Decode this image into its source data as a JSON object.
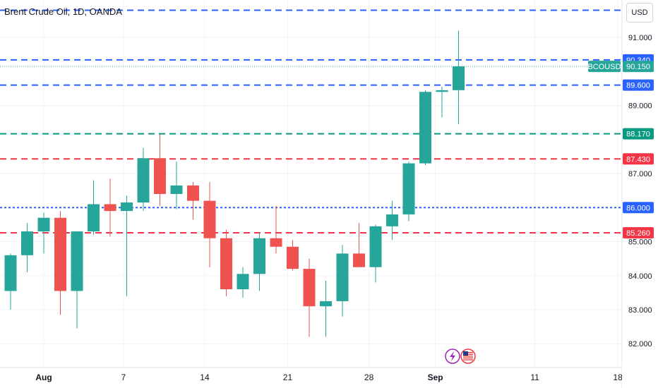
{
  "header": {
    "title": "Brent Crude Oil, 1D, OANDA",
    "currency_button": "USD"
  },
  "colors": {
    "up": "#26a69a",
    "down": "#ef5350",
    "line_blue": "#2962ff",
    "line_green": "#089981",
    "line_red": "#f23645",
    "axis_text": "#131722",
    "grid": "#f0f3fa",
    "current_price_line": "#26a69a"
  },
  "icons": [
    "lightning-icon",
    "us-flag-icon"
  ],
  "chart_data": {
    "type": "candlestick",
    "symbol": "BCOUSD",
    "title": "Brent Crude Oil, 1D, OANDA",
    "ylim": [
      81.3,
      92.1
    ],
    "y_ticks": [
      {
        "label": "82.000",
        "value": 82.0
      },
      {
        "label": "83.000",
        "value": 83.0
      },
      {
        "label": "84.000",
        "value": 84.0
      },
      {
        "label": "85.000",
        "value": 85.0
      },
      {
        "label": "87.000",
        "value": 87.0
      },
      {
        "label": "89.000",
        "value": 89.0
      },
      {
        "label": "91.000",
        "value": 91.0
      }
    ],
    "x_ticks": [
      {
        "label": "Aug",
        "bar": 2,
        "bold": true
      },
      {
        "label": "7",
        "bar": 6.8,
        "bold": false
      },
      {
        "label": "14",
        "bar": 11.7,
        "bold": false
      },
      {
        "label": "21",
        "bar": 16.7,
        "bold": false
      },
      {
        "label": "28",
        "bar": 21.6,
        "bold": false
      },
      {
        "label": "Sep",
        "bar": 25.6,
        "bold": true
      },
      {
        "label": "11",
        "bar": 31.6,
        "bold": false
      },
      {
        "label": "18",
        "bar": 36.6,
        "bold": false
      }
    ],
    "candles": [
      {
        "o": 83.55,
        "h": 84.65,
        "l": 83.0,
        "c": 84.6
      },
      {
        "o": 84.6,
        "h": 85.55,
        "l": 84.1,
        "c": 85.3
      },
      {
        "o": 85.3,
        "h": 85.85,
        "l": 84.65,
        "c": 85.7
      },
      {
        "o": 85.7,
        "h": 85.9,
        "l": 82.85,
        "c": 83.55
      },
      {
        "o": 83.55,
        "h": 85.25,
        "l": 82.45,
        "c": 85.3
      },
      {
        "o": 85.3,
        "h": 86.8,
        "l": 85.2,
        "c": 86.1
      },
      {
        "o": 86.1,
        "h": 86.85,
        "l": 85.15,
        "c": 85.9
      },
      {
        "o": 85.9,
        "h": 86.35,
        "l": 83.4,
        "c": 86.15
      },
      {
        "o": 86.15,
        "h": 87.75,
        "l": 85.9,
        "c": 87.45
      },
      {
        "o": 87.45,
        "h": 88.15,
        "l": 86.05,
        "c": 86.4
      },
      {
        "o": 86.4,
        "h": 87.35,
        "l": 85.95,
        "c": 86.65
      },
      {
        "o": 86.65,
        "h": 86.75,
        "l": 85.65,
        "c": 86.2
      },
      {
        "o": 86.2,
        "h": 86.75,
        "l": 84.25,
        "c": 85.1
      },
      {
        "o": 85.1,
        "h": 85.35,
        "l": 83.4,
        "c": 83.6
      },
      {
        "o": 83.6,
        "h": 84.25,
        "l": 83.35,
        "c": 84.05
      },
      {
        "o": 84.05,
        "h": 85.25,
        "l": 83.55,
        "c": 85.1
      },
      {
        "o": 85.1,
        "h": 86.05,
        "l": 84.65,
        "c": 84.85
      },
      {
        "o": 84.85,
        "h": 85.05,
        "l": 84.15,
        "c": 84.2
      },
      {
        "o": 84.2,
        "h": 84.5,
        "l": 82.2,
        "c": 83.1
      },
      {
        "o": 83.1,
        "h": 83.85,
        "l": 82.2,
        "c": 83.25
      },
      {
        "o": 83.25,
        "h": 84.9,
        "l": 82.8,
        "c": 84.65
      },
      {
        "o": 84.65,
        "h": 85.55,
        "l": 84.25,
        "c": 84.25
      },
      {
        "o": 84.25,
        "h": 85.5,
        "l": 83.8,
        "c": 85.45
      },
      {
        "o": 85.45,
        "h": 86.2,
        "l": 85.05,
        "c": 85.8
      },
      {
        "o": 85.8,
        "h": 87.35,
        "l": 85.6,
        "c": 87.3
      },
      {
        "o": 87.3,
        "h": 89.45,
        "l": 87.25,
        "c": 89.4
      },
      {
        "o": 89.4,
        "h": 89.55,
        "l": 88.65,
        "c": 89.45
      },
      {
        "o": 89.45,
        "h": 91.2,
        "l": 88.45,
        "c": 90.15
      }
    ],
    "horizontal_lines": [
      {
        "value": 91.8,
        "color": "#2962ff",
        "style": "dashed",
        "label": ""
      },
      {
        "value": 90.34,
        "color": "#2962ff",
        "style": "dashed",
        "label": "90.340"
      },
      {
        "value": 89.6,
        "color": "#2962ff",
        "style": "dashed",
        "label": "89.600"
      },
      {
        "value": 88.17,
        "color": "#089981",
        "style": "dashed",
        "label": "88.170"
      },
      {
        "value": 87.43,
        "color": "#f23645",
        "style": "dashed",
        "label": "87.430"
      },
      {
        "value": 86.0,
        "color": "#2962ff",
        "style": "dotted",
        "label": "86.000"
      },
      {
        "value": 85.26,
        "color": "#f23645",
        "style": "dashed",
        "label": "85.260"
      }
    ],
    "current_price": {
      "value": 90.15,
      "label": "90.150",
      "symbol_label": "BCOUSD"
    }
  }
}
